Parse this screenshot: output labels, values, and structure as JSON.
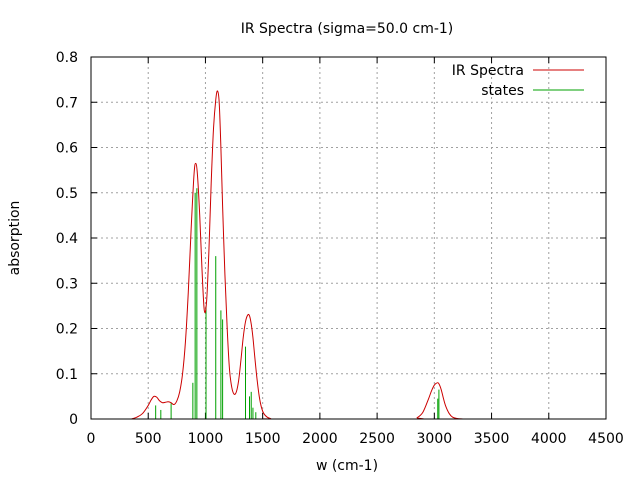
{
  "chart_data": {
    "type": "line",
    "title": "IR Spectra (sigma=50.0 cm-1)",
    "xlabel": "w (cm-1)",
    "ylabel": "absorption",
    "xlim": [
      0,
      4500
    ],
    "ylim": [
      0,
      0.8
    ],
    "xticks": [
      0,
      500,
      1000,
      1500,
      2000,
      2500,
      3000,
      3500,
      4000,
      4500
    ],
    "yticks": [
      0,
      0.1,
      0.2,
      0.3,
      0.4,
      0.5,
      0.6,
      0.7,
      0.8
    ],
    "grid": true,
    "legend_position": "top-right",
    "colors": {
      "spectrum": "#cc0000",
      "states": "#00a000"
    },
    "series": [
      {
        "name": "IR Spectra",
        "x": [
          350,
          400,
          450,
          500,
          525,
          550,
          575,
          600,
          625,
          650,
          675,
          700,
          725,
          750,
          775,
          800,
          825,
          850,
          875,
          900,
          915,
          930,
          950,
          970,
          990,
          1010,
          1030,
          1050,
          1070,
          1090,
          1105,
          1120,
          1135,
          1150,
          1170,
          1190,
          1210,
          1230,
          1250,
          1270,
          1290,
          1310,
          1330,
          1350,
          1370,
          1385,
          1400,
          1415,
          1430,
          1450,
          1470,
          1490,
          1510,
          1540,
          1570,
          1600,
          2800,
          2850,
          2900,
          2950,
          2975,
          3000,
          3025,
          3040,
          3060,
          3080,
          3100,
          3130,
          3160,
          3200,
          3250
        ],
        "values": [
          0.0,
          0.004,
          0.012,
          0.03,
          0.042,
          0.05,
          0.048,
          0.04,
          0.036,
          0.037,
          0.038,
          0.036,
          0.032,
          0.04,
          0.06,
          0.1,
          0.17,
          0.28,
          0.42,
          0.54,
          0.565,
          0.54,
          0.45,
          0.33,
          0.24,
          0.26,
          0.37,
          0.52,
          0.64,
          0.705,
          0.725,
          0.7,
          0.6,
          0.47,
          0.32,
          0.2,
          0.11,
          0.07,
          0.055,
          0.06,
          0.085,
          0.13,
          0.18,
          0.215,
          0.23,
          0.228,
          0.21,
          0.18,
          0.14,
          0.09,
          0.05,
          0.025,
          0.012,
          0.004,
          0.001,
          0.0,
          0.0,
          0.003,
          0.015,
          0.045,
          0.062,
          0.075,
          0.08,
          0.078,
          0.065,
          0.045,
          0.028,
          0.012,
          0.004,
          0.001,
          0.0
        ]
      },
      {
        "name": "states",
        "type": "stick",
        "x": [
          565,
          610,
          700,
          890,
          910,
          925,
          1005,
          1090,
          1135,
          1150,
          1350,
          1385,
          1400,
          1415,
          1440,
          3030,
          3040
        ],
        "values": [
          0.03,
          0.02,
          0.035,
          0.08,
          0.5,
          0.51,
          0.25,
          0.36,
          0.24,
          0.22,
          0.16,
          0.05,
          0.06,
          0.025,
          0.015,
          0.045,
          0.065
        ]
      }
    ]
  }
}
